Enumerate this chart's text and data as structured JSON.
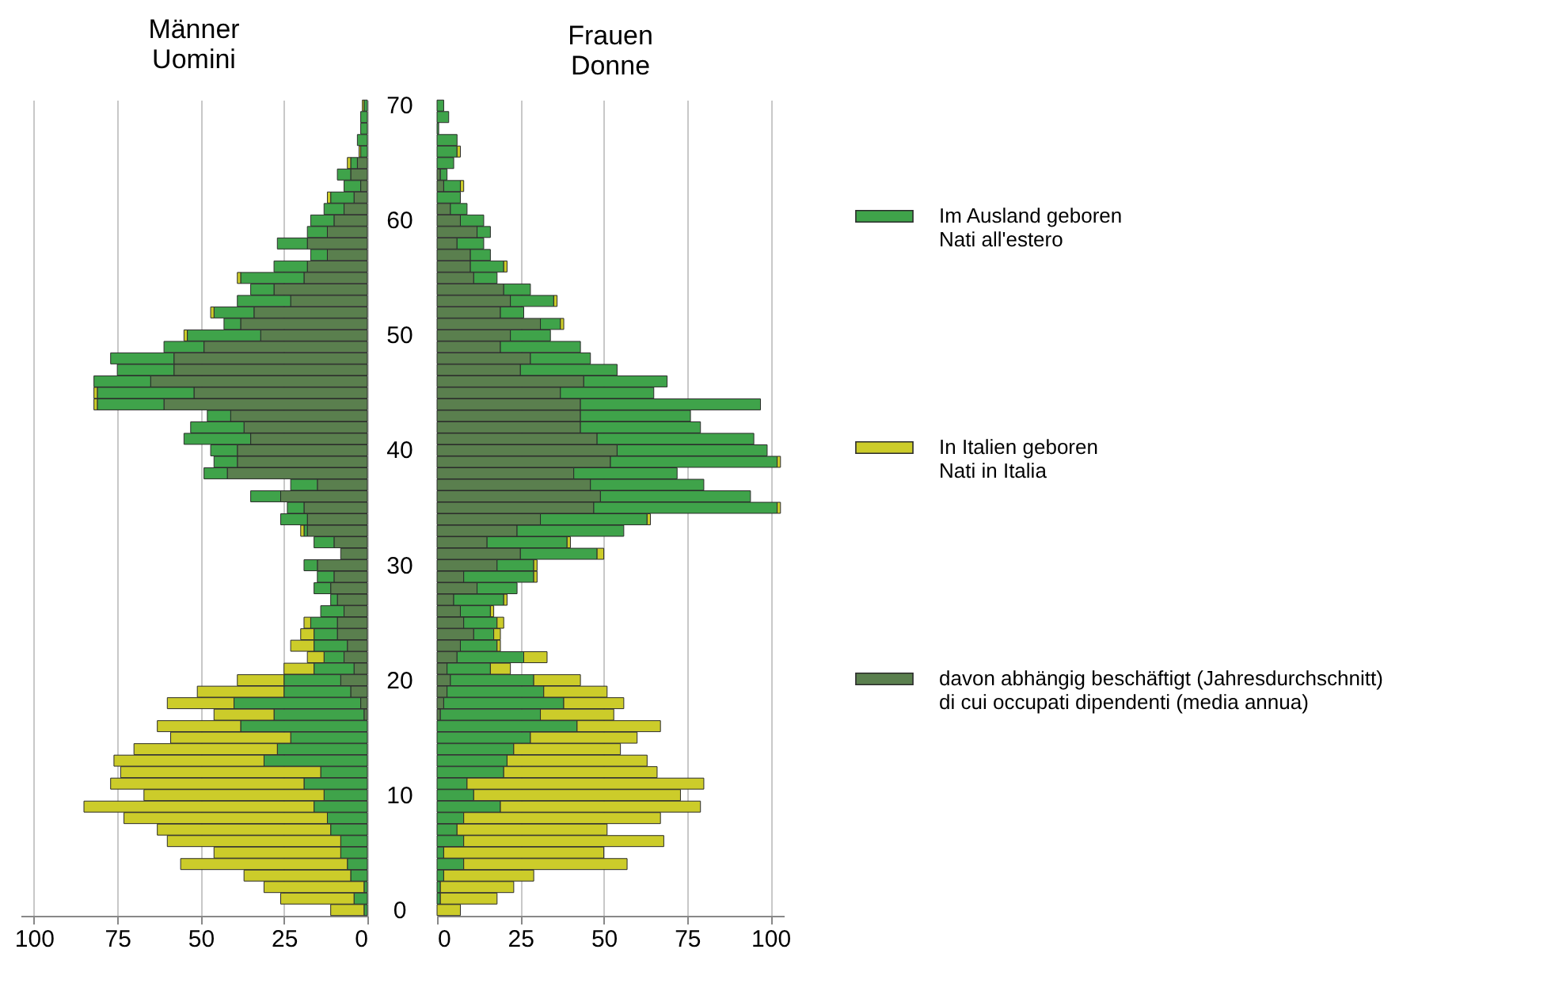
{
  "chart_data": [
    {
      "type": "bar",
      "orientation": "horizontal",
      "stacked": true,
      "title": "Männer\nUomini",
      "categories": [
        "70",
        null,
        null,
        null,
        null,
        null,
        null,
        null,
        null,
        null,
        "60",
        null,
        null,
        null,
        null,
        null,
        null,
        null,
        null,
        null,
        "50",
        null,
        null,
        null,
        null,
        null,
        null,
        null,
        null,
        null,
        "40",
        null,
        null,
        null,
        null,
        null,
        null,
        null,
        null,
        null,
        "30",
        null,
        null,
        null,
        null,
        null,
        null,
        null,
        null,
        null,
        "20",
        null,
        null,
        null,
        null,
        null,
        null,
        null,
        null,
        null,
        "10",
        null,
        null,
        null,
        null,
        null,
        null,
        null,
        null,
        null,
        "0"
      ],
      "xlim": [
        104,
        0
      ],
      "xticks": [
        100,
        75,
        50,
        25,
        0
      ],
      "grid": "x",
      "legend": false,
      "series": [
        {
          "color": "#5a7f4e",
          "values": [
            0,
            0,
            0,
            0,
            0,
            3,
            5,
            2,
            4,
            7,
            10,
            12,
            18,
            12,
            18,
            19,
            28,
            23,
            34,
            38,
            32,
            49,
            58,
            58,
            65,
            52,
            61,
            41,
            37,
            35,
            39,
            39,
            42,
            15,
            26,
            19,
            18,
            18,
            10,
            8,
            15,
            10,
            11,
            9,
            7,
            9,
            9,
            6,
            7,
            4,
            8,
            5,
            2,
            1,
            0,
            0,
            0,
            0,
            0,
            0,
            0,
            0,
            0,
            0,
            0,
            0,
            0,
            0,
            0,
            0,
            0
          ]
        },
        {
          "color": "#3fa34a",
          "values": [
            1,
            2,
            2,
            3,
            2,
            2,
            4,
            5,
            7,
            6,
            7,
            6,
            9,
            5,
            10,
            19,
            7,
            16,
            12,
            5,
            22,
            12,
            19,
            17,
            17,
            29,
            20,
            7,
            16,
            20,
            8,
            7,
            7,
            8,
            9,
            5,
            8,
            1,
            6,
            0,
            4,
            5,
            5,
            2,
            7,
            8,
            7,
            10,
            6,
            12,
            17,
            20,
            38,
            27,
            38,
            23,
            27,
            31,
            14,
            19,
            13,
            16,
            12,
            11,
            8,
            8,
            6,
            5,
            1,
            4,
            1
          ]
        },
        {
          "color": "#cccc2a",
          "values": [
            0.5,
            0,
            0,
            0,
            0.5,
            1,
            0,
            0,
            1,
            0,
            0,
            0,
            0,
            0,
            0,
            1,
            0,
            0,
            1,
            0,
            1,
            0,
            0,
            0,
            0,
            1,
            1,
            0,
            0,
            0,
            0,
            0,
            0,
            0,
            0,
            0,
            0,
            1,
            0,
            0,
            0,
            0,
            0,
            0,
            0,
            2,
            4,
            7,
            5,
            9,
            14,
            26,
            20,
            18,
            25,
            36,
            43,
            45,
            60,
            58,
            54,
            69,
            61,
            52,
            52,
            38,
            50,
            32,
            30,
            22,
            10
          ]
        }
      ]
    },
    {
      "type": "bar",
      "orientation": "horizontal",
      "stacked": true,
      "title": "Frauen\nDonne",
      "categories": [
        "70",
        null,
        null,
        null,
        null,
        null,
        null,
        null,
        null,
        null,
        "60",
        null,
        null,
        null,
        null,
        null,
        null,
        null,
        null,
        null,
        "50",
        null,
        null,
        null,
        null,
        null,
        null,
        null,
        null,
        null,
        "40",
        null,
        null,
        null,
        null,
        null,
        null,
        null,
        null,
        null,
        "30",
        null,
        null,
        null,
        null,
        null,
        null,
        null,
        null,
        null,
        "20",
        null,
        null,
        null,
        null,
        null,
        null,
        null,
        null,
        null,
        "10",
        null,
        null,
        null,
        null,
        null,
        null,
        null,
        null,
        null,
        "0"
      ],
      "xlim": [
        0,
        104
      ],
      "xticks": [
        0,
        25,
        50,
        75,
        100
      ],
      "grid": "x",
      "legend": "right",
      "tick_labels": "x",
      "series": [
        {
          "name": "davon abhängig beschäftigt (Jahresdurchschnitt)\ndi cui occupati dipendenti (media annua)",
          "color": "#5a7f4e",
          "values": [
            0,
            0,
            0,
            0,
            0,
            0,
            1,
            2,
            0,
            4,
            7,
            12,
            6,
            10,
            10,
            11,
            20,
            22,
            19,
            31,
            22,
            19,
            28,
            25,
            44,
            37,
            43,
            43,
            43,
            48,
            54,
            52,
            41,
            46,
            49,
            47,
            31,
            24,
            15,
            25,
            18,
            8,
            12,
            5,
            7,
            8,
            11,
            7,
            6,
            3,
            4,
            3,
            2,
            1,
            0,
            0,
            0,
            0,
            0,
            0,
            0,
            0,
            0,
            0,
            0,
            0,
            0,
            0,
            0,
            0,
            0
          ]
        },
        {
          "name": "Im Ausland geboren\nNati all'estero",
          "color": "#3fa34a",
          "values": [
            2,
            3.5,
            0.5,
            6,
            6,
            5,
            2,
            5,
            7,
            5,
            7,
            4,
            8,
            6,
            10,
            7,
            8,
            13,
            7,
            6,
            12,
            24,
            18,
            29,
            25,
            28,
            54,
            33,
            36,
            47,
            45,
            50,
            31,
            34,
            45,
            55,
            32,
            32,
            24,
            23,
            11,
            21,
            12,
            15,
            9,
            10,
            6,
            11,
            20,
            13,
            25,
            29,
            36,
            30,
            42,
            28,
            23,
            21,
            20,
            9,
            11,
            19,
            8,
            6,
            8,
            2,
            8,
            2,
            1,
            1,
            0
          ]
        },
        {
          "name": "In Italien geboren\nNati in Italia",
          "color": "#cccc2a",
          "values": [
            0,
            0,
            0,
            0,
            1,
            0,
            0,
            1,
            0,
            0,
            0,
            0,
            0,
            0,
            1,
            0,
            0,
            1,
            0,
            1,
            0,
            0,
            0,
            0,
            0,
            0,
            0,
            0,
            0,
            0,
            0,
            1,
            0,
            0,
            0,
            1,
            1,
            0,
            1,
            2,
            1,
            1,
            0,
            1,
            1,
            2,
            2,
            1,
            7,
            6,
            14,
            19,
            18,
            22,
            25,
            32,
            32,
            42,
            46,
            71,
            62,
            60,
            59,
            45,
            60,
            48,
            49,
            27,
            22,
            17,
            7
          ]
        }
      ]
    }
  ]
}
